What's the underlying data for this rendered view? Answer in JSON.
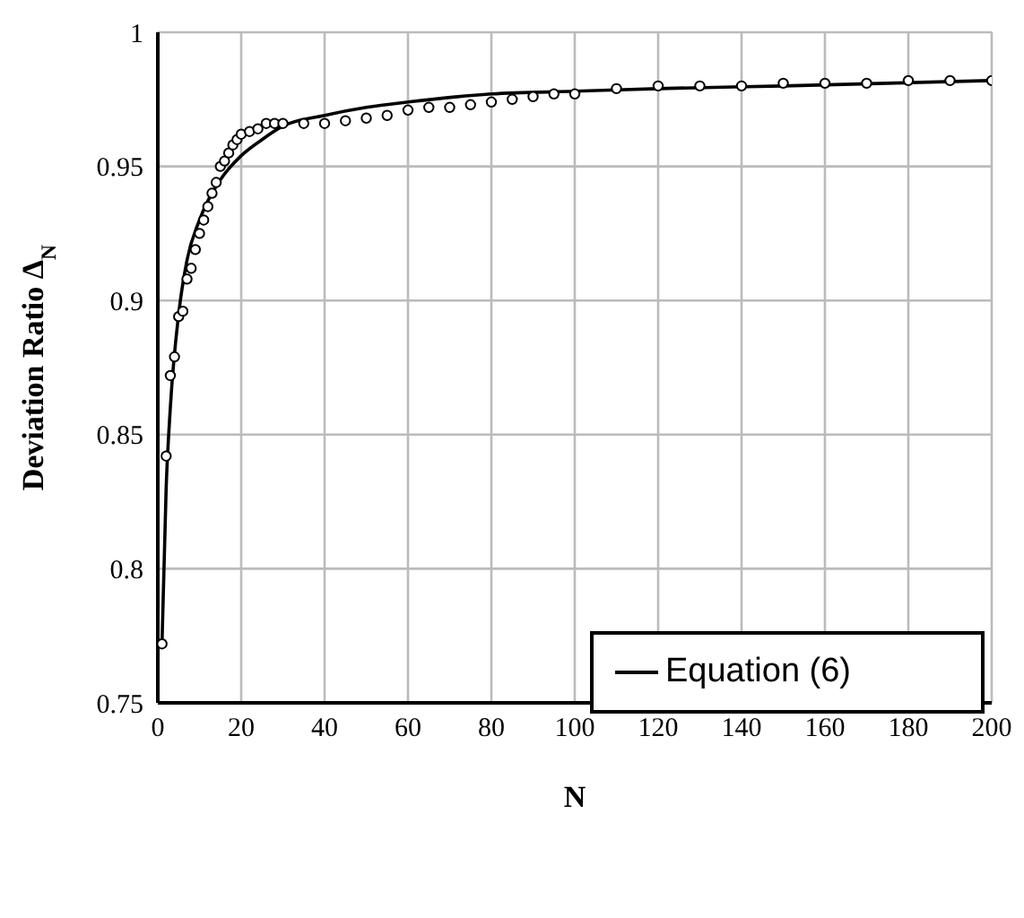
{
  "chart_data": {
    "type": "line",
    "xlabel": "N",
    "ylabel": "Deviation Ratio Δ$_{N}$",
    "xlim": [
      0,
      200
    ],
    "xticks": [
      0,
      20,
      40,
      60,
      80,
      100,
      120,
      140,
      160,
      180,
      200
    ],
    "ylim": [
      0.75,
      1
    ],
    "yticks": [
      0.75,
      0.8,
      0.85,
      0.9,
      0.95,
      1
    ],
    "grid": true,
    "legend": "bottom right",
    "series": [
      {
        "type": "scatter",
        "marker": "circle",
        "color": "#000000",
        "x": [
          1,
          2,
          3,
          4,
          5,
          6,
          7,
          8,
          9,
          10,
          11,
          12,
          13,
          14,
          15,
          16,
          17,
          18,
          19,
          20,
          22,
          24,
          26,
          28,
          30,
          35,
          40,
          45,
          50,
          55,
          60,
          65,
          70,
          75,
          80,
          85,
          90,
          95,
          100,
          110,
          120,
          130,
          140,
          150,
          160,
          170,
          180,
          190,
          200
        ],
        "values": [
          0.772,
          0.842,
          0.872,
          0.879,
          0.894,
          0.896,
          0.908,
          0.912,
          0.919,
          0.925,
          0.93,
          0.935,
          0.94,
          0.944,
          0.95,
          0.952,
          0.955,
          0.958,
          0.96,
          0.962,
          0.963,
          0.964,
          0.966,
          0.966,
          0.966,
          0.966,
          0.966,
          0.967,
          0.968,
          0.969,
          0.971,
          0.972,
          0.972,
          0.973,
          0.974,
          0.975,
          0.976,
          0.977,
          0.977,
          0.979,
          0.98,
          0.98,
          0.98,
          0.981,
          0.981,
          0.981,
          0.982,
          0.982,
          0.982
        ]
      },
      {
        "name": "Equation (6)",
        "marker": "none",
        "line_style": "solid",
        "color": "#000000",
        "x": [
          1,
          2,
          3,
          5,
          7,
          10,
          15,
          20,
          25,
          30,
          40,
          50,
          60,
          80,
          100,
          120,
          150,
          200
        ],
        "values": [
          0.772,
          0.83,
          0.86,
          0.895,
          0.915,
          0.93,
          0.945,
          0.954,
          0.96,
          0.965,
          0.969,
          0.972,
          0.974,
          0.977,
          0.978,
          0.979,
          0.98,
          0.982
        ]
      }
    ]
  }
}
